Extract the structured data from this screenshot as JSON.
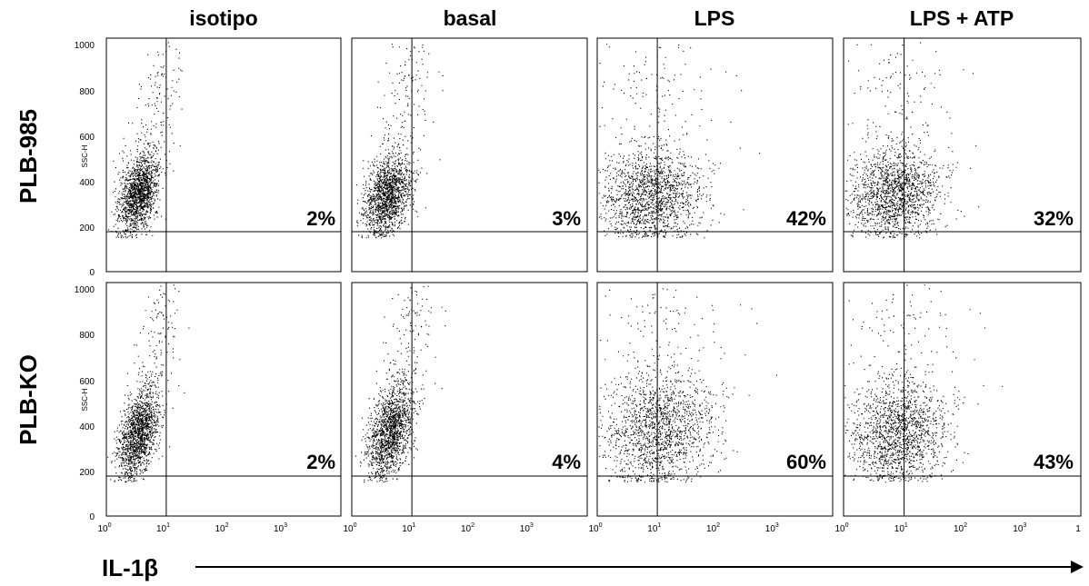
{
  "figure": {
    "x_axis_label": "IL-1β",
    "y_axis_label": "SSC-H",
    "columns": [
      "isotipo",
      "basal",
      "LPS",
      "LPS + ATP"
    ],
    "rows": [
      "PLB-985",
      "PLB-KO"
    ],
    "y_ticks": [
      "0",
      "200",
      "400",
      "600",
      "800",
      "1000"
    ],
    "x_ticks": [
      {
        "base": "10",
        "exp": "0"
      },
      {
        "base": "10",
        "exp": "1"
      },
      {
        "base": "10",
        "exp": "2"
      },
      {
        "base": "10",
        "exp": "3"
      }
    ],
    "x_axis_end_tick": "1"
  },
  "chart_data": {
    "type": "scatter",
    "title": "",
    "xlabel": "IL-1β",
    "ylabel": "SSC-H",
    "x_scale": "log",
    "xlim": [
      1,
      10000
    ],
    "ylim": [
      0,
      1023
    ],
    "grid": false,
    "legend": "none",
    "gate": {
      "x": 10.5,
      "y": 175
    },
    "panels": [
      {
        "row": "PLB-985",
        "column": "isotipo",
        "percent_label": "2%",
        "percent": 2,
        "cloud": {
          "x_center": 3.5,
          "x_spread_decades": 0.16,
          "y_center": 340,
          "y_spread": 85,
          "tilt": 0.7
        }
      },
      {
        "row": "PLB-985",
        "column": "basal",
        "percent_label": "3%",
        "percent": 3,
        "cloud": {
          "x_center": 4.0,
          "x_spread_decades": 0.18,
          "y_center": 330,
          "y_spread": 85,
          "tilt": 0.7
        }
      },
      {
        "row": "PLB-985",
        "column": "LPS",
        "percent_label": "42%",
        "percent": 42,
        "cloud": {
          "x_center": 8.0,
          "x_spread_decades": 0.42,
          "y_center": 330,
          "y_spread": 100,
          "tilt": 0.25
        }
      },
      {
        "row": "PLB-985",
        "column": "LPS + ATP",
        "percent_label": "32%",
        "percent": 32,
        "cloud": {
          "x_center": 7.0,
          "x_spread_decades": 0.38,
          "y_center": 340,
          "y_spread": 95,
          "tilt": 0.25
        }
      },
      {
        "row": "PLB-KO",
        "column": "isotipo",
        "percent_label": "2%",
        "percent": 2,
        "cloud": {
          "x_center": 3.5,
          "x_spread_decades": 0.15,
          "y_center": 360,
          "y_spread": 95,
          "tilt": 0.75
        }
      },
      {
        "row": "PLB-KO",
        "column": "basal",
        "percent_label": "4%",
        "percent": 4,
        "cloud": {
          "x_center": 4.5,
          "x_spread_decades": 0.17,
          "y_center": 370,
          "y_spread": 100,
          "tilt": 0.75
        }
      },
      {
        "row": "PLB-KO",
        "column": "LPS",
        "percent_label": "60%",
        "percent": 60,
        "cloud": {
          "x_center": 11.0,
          "x_spread_decades": 0.45,
          "y_center": 380,
          "y_spread": 125,
          "tilt": 0.3
        }
      },
      {
        "row": "PLB-KO",
        "column": "LPS + ATP",
        "percent_label": "43%",
        "percent": 43,
        "cloud": {
          "x_center": 8.0,
          "x_spread_decades": 0.4,
          "y_center": 360,
          "y_spread": 110,
          "tilt": 0.25
        }
      }
    ]
  }
}
